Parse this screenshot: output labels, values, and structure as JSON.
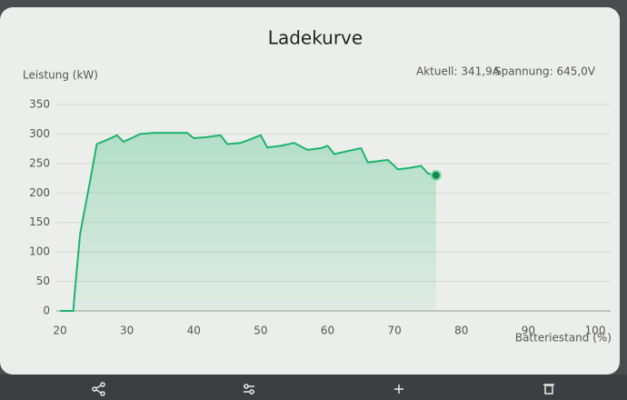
{
  "chart_data": {
    "type": "line",
    "title": "Ladekurve",
    "ylabel": "Leistung (kW)",
    "xlabel": "Batteriestand (%)",
    "annotations": [
      "Aktuell: 341,9A",
      "Spannung: 645,0V"
    ],
    "x": [
      20,
      22,
      22.2,
      23,
      24.5,
      25.5,
      27,
      28,
      28.5,
      29.5,
      30.5,
      32,
      34,
      37,
      39,
      40,
      42,
      44,
      45,
      47,
      48,
      50,
      51,
      53,
      55,
      57,
      59,
      60,
      61,
      63,
      65,
      66,
      69,
      70,
      70.5,
      72,
      74,
      75,
      76.2
    ],
    "values": [
      0,
      0,
      30,
      130,
      220,
      283,
      290,
      295,
      298,
      287,
      292,
      300,
      302,
      302,
      302,
      293,
      295,
      298,
      283,
      285,
      289,
      298,
      277,
      280,
      285,
      273,
      276,
      280,
      266,
      271,
      276,
      252,
      256,
      246,
      240,
      242,
      246,
      233,
      230
    ],
    "color": "#1db56c",
    "area": true,
    "end_marker": true,
    "xlim": [
      20,
      100
    ],
    "xticks": [
      20,
      30,
      40,
      50,
      60,
      70,
      80,
      90,
      100
    ],
    "ylim": [
      0,
      350
    ],
    "yticks": [
      0,
      50,
      100,
      150,
      200,
      250,
      300,
      350
    ],
    "grid": true
  }
}
